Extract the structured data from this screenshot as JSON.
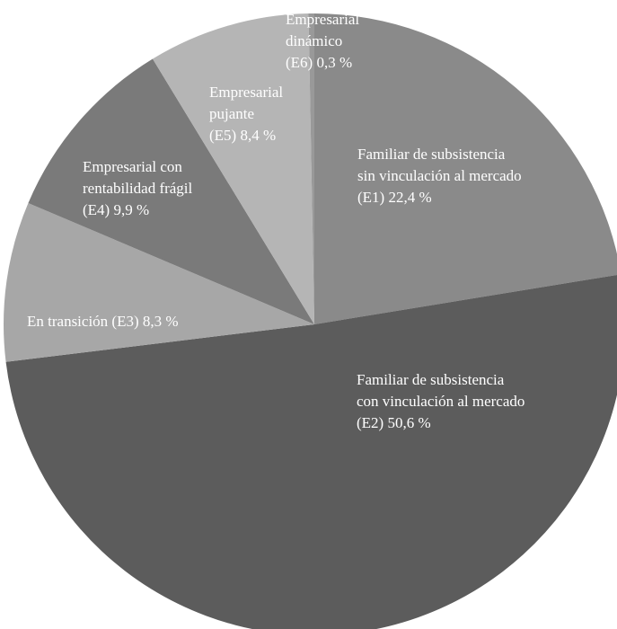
{
  "chart_data": {
    "type": "pie",
    "start_angle_deg": 0,
    "direction": "clockwise",
    "slices": [
      {
        "id": "E1",
        "value": 22.4,
        "color": "#8a8a8a",
        "label_lines": [
          "Familiar de subsistencia",
          "sin vinculación al mercado",
          "(E1) 22,4 %"
        ]
      },
      {
        "id": "E2",
        "value": 50.6,
        "color": "#5c5c5c",
        "label_lines": [
          "Familiar de subsistencia",
          "con vinculación al mercado",
          "(E2) 50,6 %"
        ]
      },
      {
        "id": "E3",
        "value": 8.3,
        "color": "#a7a7a7",
        "label_lines": [
          "En transición (E3) 8,3 %"
        ]
      },
      {
        "id": "E4",
        "value": 9.9,
        "color": "#7a7a7a",
        "label_lines": [
          "Empresarial con",
          "rentabilidad frágil",
          "(E4) 9,9 %"
        ]
      },
      {
        "id": "E5",
        "value": 8.4,
        "color": "#b5b5b5",
        "label_lines": [
          "Empresarial",
          "pujante",
          "(E5) 8,4 %"
        ]
      },
      {
        "id": "E6",
        "value": 0.3,
        "color": "#999999",
        "label_lines": [
          "Empresarial",
          "dinámico",
          "(E6) 0,3 %"
        ]
      }
    ]
  }
}
